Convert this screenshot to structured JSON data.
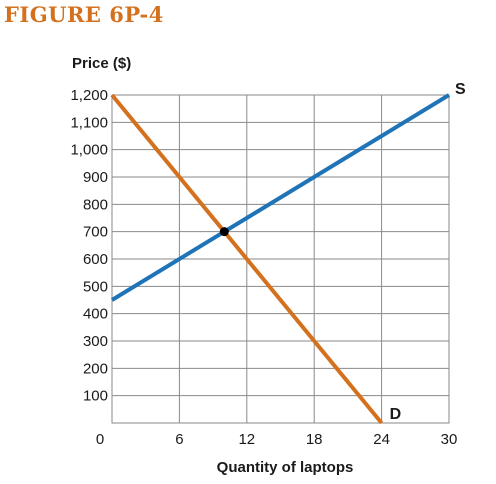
{
  "figure_label": "FIGURE 6P-4",
  "colors": {
    "title": "#d4711f",
    "supply": "#1f73b7",
    "demand": "#d4711f",
    "grid": "#8a8a8a",
    "point": "#000000"
  },
  "chart_data": {
    "type": "line",
    "ylabel": "Price ($)",
    "xlabel": "Quantity of laptops",
    "xlim": [
      0,
      30
    ],
    "ylim": [
      0,
      1200
    ],
    "x_ticks": [
      6,
      12,
      18,
      24,
      30
    ],
    "x_tick_labels": [
      "6",
      "12",
      "18",
      "24",
      "30"
    ],
    "y_ticks": [
      100,
      200,
      300,
      400,
      500,
      600,
      700,
      800,
      900,
      1000,
      1100,
      1200
    ],
    "y_tick_labels": [
      "100",
      "200",
      "300",
      "400",
      "500",
      "600",
      "700",
      "800",
      "900",
      "1,000",
      "1,100",
      "1,200"
    ],
    "origin_label": "0",
    "grid": true,
    "series": [
      {
        "name": "S",
        "x": [
          0,
          30
        ],
        "y": [
          450,
          1200
        ]
      },
      {
        "name": "D",
        "x": [
          0,
          24
        ],
        "y": [
          1200,
          0
        ]
      }
    ],
    "equilibrium": {
      "x": 10,
      "y": 700
    }
  }
}
